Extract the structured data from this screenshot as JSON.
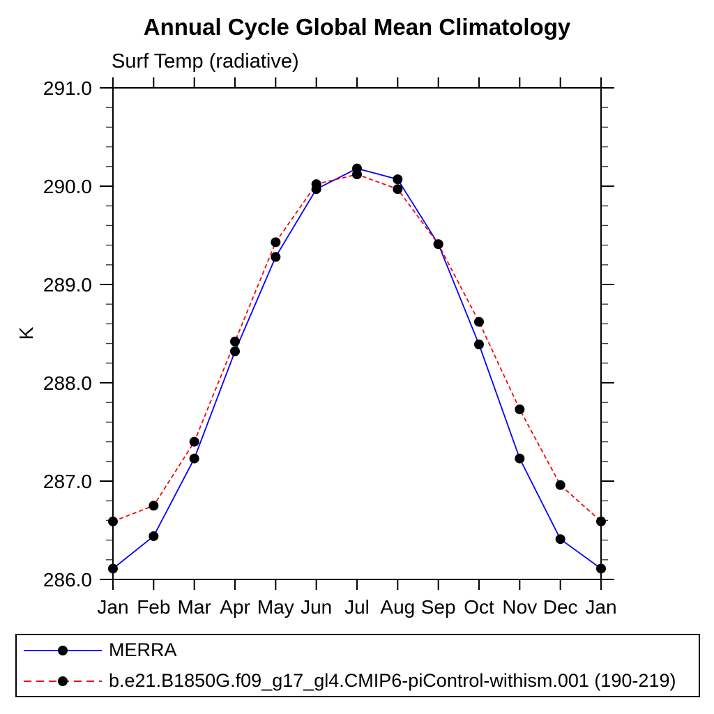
{
  "page": {
    "title": "Annual Cycle Global Mean Climatology",
    "subtitle": "Surf Temp (radiative)"
  },
  "colors": {
    "axis": "#000000",
    "minor_tick": "#3a3a3a",
    "marker": "#000000",
    "merra_blue": "#0000ff",
    "model_red": "#fb0007"
  },
  "chart_data": {
    "type": "line",
    "title": "Annual Cycle Global Mean Climatology",
    "subtitle": "Surf Temp (radiative)",
    "xlabel": "",
    "ylabel": "K",
    "categories": [
      "Jan",
      "Feb",
      "Mar",
      "Apr",
      "May",
      "Jun",
      "Jul",
      "Aug",
      "Sep",
      "Oct",
      "Nov",
      "Dec",
      "Jan"
    ],
    "ylim": [
      286.0,
      291.0
    ],
    "ytick_interval": 1.0,
    "yminor_interval": 0.2,
    "ytick_format_decimals": 1,
    "grid": false,
    "legend_position": "bottom-left-box",
    "series": [
      {
        "name": "MERRA",
        "color": "#0000ff",
        "line_style": "solid",
        "marker": "circle",
        "marker_color": "#000000",
        "values": [
          286.11,
          286.44,
          287.23,
          288.32,
          289.28,
          289.97,
          290.18,
          290.07,
          289.41,
          288.39,
          287.23,
          286.41,
          286.11
        ]
      },
      {
        "name": "b.e21.B1850G.f09_g17_gl4.CMIP6-piControl-withism.001 (190-219)",
        "color": "#fb0007",
        "line_style": "dashed",
        "marker": "circle",
        "marker_color": "#000000",
        "values": [
          286.59,
          286.75,
          287.4,
          288.42,
          289.43,
          290.02,
          290.12,
          289.97,
          289.41,
          288.62,
          287.73,
          286.96,
          286.59
        ]
      }
    ]
  }
}
